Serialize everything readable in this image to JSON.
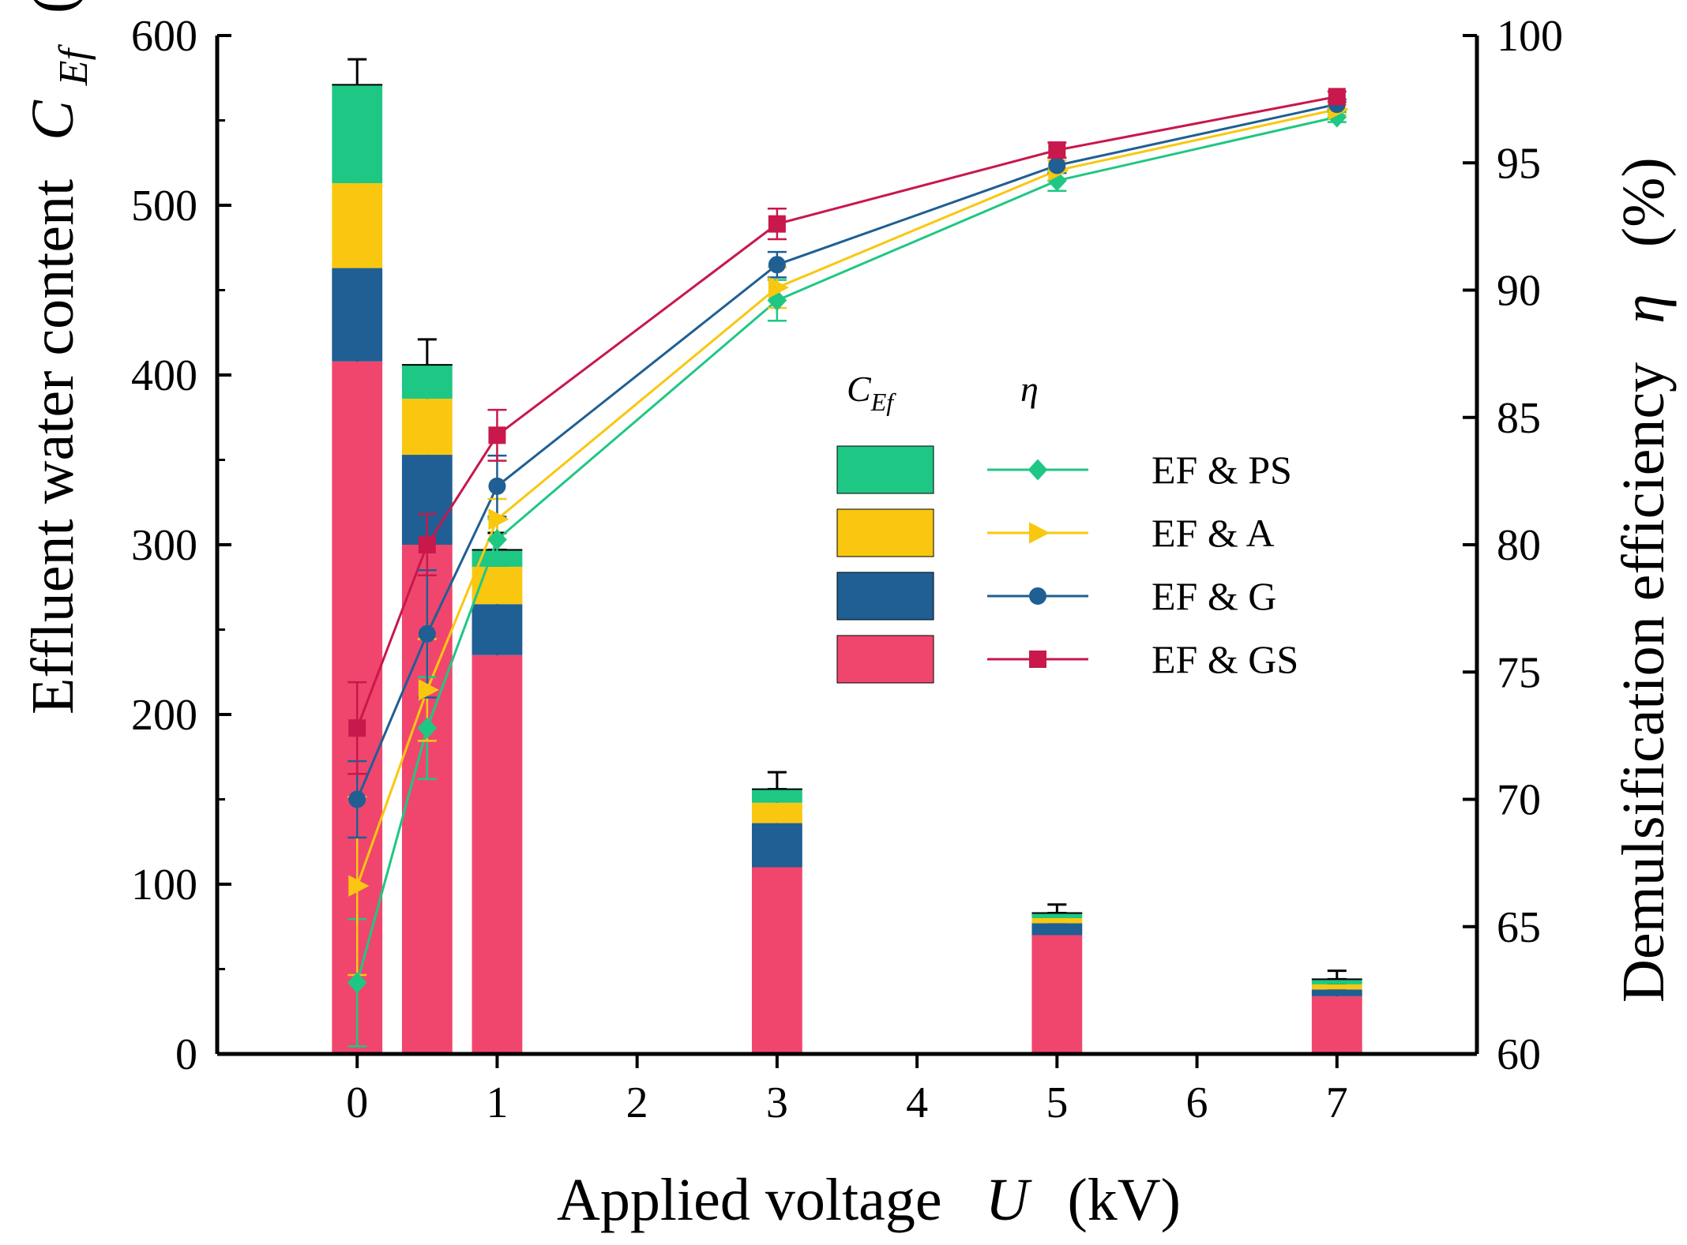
{
  "chart_data": {
    "type": "bar+line",
    "x": [
      0,
      0.5,
      1,
      3,
      5,
      7
    ],
    "xlabel": {
      "text": "Applied voltage",
      "symbol": "U",
      "unit": "(kV)"
    },
    "ylabel_left": {
      "text": "Effluent water content",
      "symbol": "C",
      "subscript": "Ef",
      "unit": "(mg/L)"
    },
    "ylabel_right": {
      "text": "Demulsification efficiency",
      "symbol": "η",
      "unit": "(%)"
    },
    "xlim": [
      -1,
      8
    ],
    "ylim_left": [
      0,
      600
    ],
    "ylim_right": [
      60,
      100
    ],
    "xticks": [
      0,
      1,
      2,
      3,
      4,
      5,
      6,
      7
    ],
    "yticks_left": [
      0,
      100,
      200,
      300,
      400,
      500,
      600
    ],
    "yticks_right": [
      60,
      65,
      70,
      75,
      80,
      85,
      90,
      95,
      100
    ],
    "bar_width_kv": 0.36,
    "bar_segments": [
      {
        "name": "EF & GS",
        "color": "#f0466e",
        "values": [
          408,
          300,
          235,
          110,
          70,
          34
        ],
        "errors": [
          15,
          25,
          12,
          10,
          4,
          4
        ]
      },
      {
        "name": "EF & G",
        "color": "#1f5f94",
        "values": [
          55,
          53,
          30,
          26,
          7,
          4
        ],
        "errors": [
          15,
          20,
          10,
          10,
          3,
          3
        ]
      },
      {
        "name": "EF & A",
        "color": "#f9c710",
        "values": [
          50,
          33,
          22,
          12,
          3,
          3
        ],
        "errors": [
          15,
          18,
          10,
          8,
          3,
          3
        ]
      },
      {
        "name": "EF & PS",
        "color": "#1fc784",
        "values": [
          58,
          20,
          10,
          8,
          3,
          3
        ],
        "errors": [
          15,
          15,
          10,
          10,
          5,
          5
        ]
      }
    ],
    "line_series": [
      {
        "name": "EF & PS",
        "color": "#1fc784",
        "marker": "diamond",
        "values": [
          62.8,
          72.8,
          80.2,
          89.6,
          94.3,
          96.8
        ],
        "errors": [
          2.5,
          2.0,
          0.8,
          0.8,
          0.4,
          0.2
        ]
      },
      {
        "name": "EF & A",
        "color": "#f9c710",
        "marker": "triangle-right",
        "values": [
          66.6,
          74.3,
          81.0,
          90.1,
          94.7,
          97.1
        ],
        "errors": [
          3.5,
          2.0,
          0.8,
          0.8,
          0.4,
          0.2
        ]
      },
      {
        "name": "EF & G",
        "color": "#1f5f94",
        "marker": "circle",
        "values": [
          70.0,
          76.5,
          82.3,
          91.0,
          94.9,
          97.3
        ],
        "errors": [
          1.5,
          2.5,
          1.2,
          0.5,
          0.3,
          0.2
        ]
      },
      {
        "name": "EF & GS",
        "color": "#c8184c",
        "marker": "square",
        "values": [
          72.8,
          80.0,
          84.3,
          92.6,
          95.5,
          97.6
        ],
        "errors": [
          1.8,
          1.2,
          1.0,
          0.6,
          0.3,
          0.2
        ]
      }
    ],
    "legend": {
      "position": "center-right",
      "bar_header": {
        "symbol": "C",
        "subscript": "Ef"
      },
      "line_header": "η",
      "entries": [
        "EF & PS",
        "EF & A",
        "EF & G",
        "EF & GS"
      ]
    }
  }
}
